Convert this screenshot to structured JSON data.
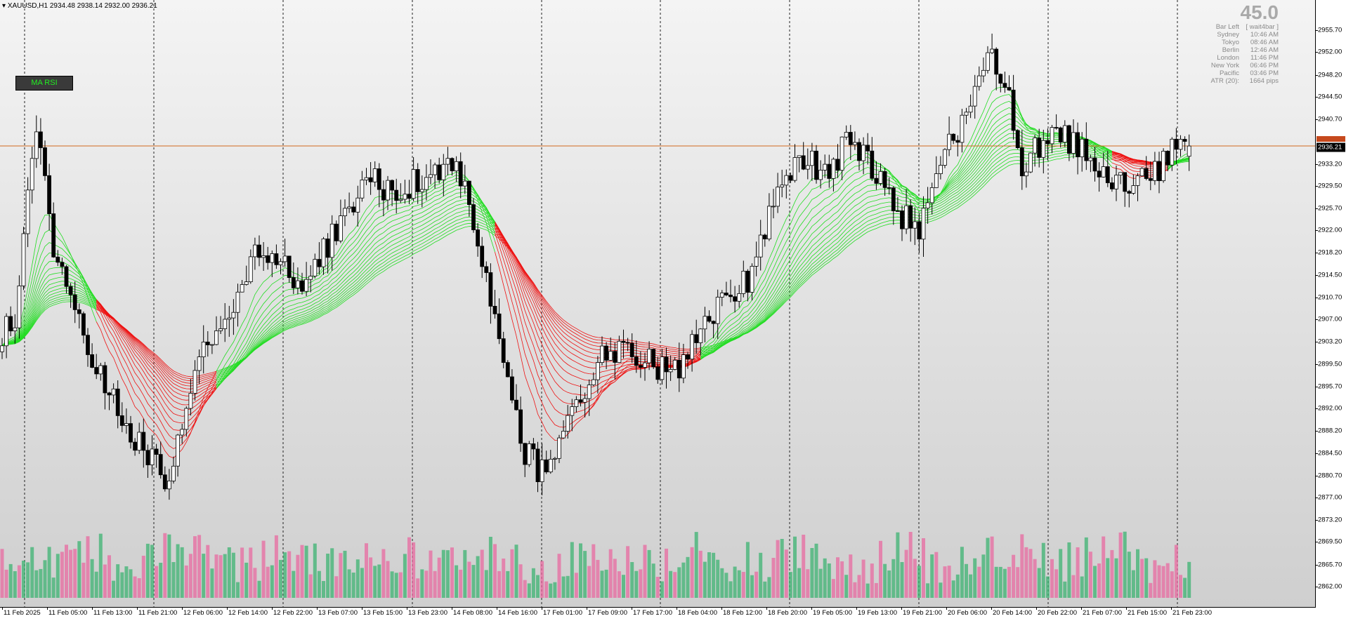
{
  "chart": {
    "title": "XAUUSD,H1  2934.48 2938.14 2932.00 2936.21",
    "ma_rsi_label": "MA RSI",
    "countdown": "45.0",
    "current_price": "2936.21",
    "current_price_value": 2936.21,
    "price_range": [
      2860.1,
      2960.8
    ],
    "session_info": [
      {
        "label": "Bar Left",
        "value": "[ wait4bar ]"
      },
      {
        "label": "Sydney",
        "value": "10:46 AM"
      },
      {
        "label": "Tokyo",
        "value": "08:46 AM"
      },
      {
        "label": "Berlin",
        "value": "12:46 AM"
      },
      {
        "label": "London",
        "value": "11:46 PM"
      },
      {
        "label": "New York",
        "value": "06:46 PM"
      },
      {
        "label": "Pacific",
        "value": "03:46 PM"
      },
      {
        "label": "ATR (20):",
        "value": "1664 pips"
      }
    ],
    "price_labels": [
      "2955.70",
      "2952.00",
      "2948.20",
      "2944.50",
      "2940.70",
      "2933.20",
      "2929.50",
      "2925.70",
      "2922.00",
      "2918.20",
      "2914.50",
      "2910.70",
      "2907.00",
      "2903.20",
      "2899.50",
      "2895.70",
      "2892.00",
      "2888.20",
      "2884.50",
      "2880.70",
      "2877.00",
      "2873.20",
      "2869.50",
      "2865.70",
      "2862.00"
    ],
    "time_labels": [
      "11 Feb 2025",
      "11 Feb 05:00",
      "11 Feb 13:00",
      "11 Feb 21:00",
      "12 Feb 06:00",
      "12 Feb 14:00",
      "12 Feb 22:00",
      "13 Feb 07:00",
      "13 Feb 15:00",
      "13 Feb 23:00",
      "14 Feb 08:00",
      "14 Feb 16:00",
      "17 Feb 01:00",
      "17 Feb 09:00",
      "17 Feb 17:00",
      "18 Feb 04:00",
      "18 Feb 12:00",
      "18 Feb 20:00",
      "19 Feb 05:00",
      "19 Feb 13:00",
      "19 Feb 21:00",
      "20 Feb 06:00",
      "20 Feb 14:00",
      "20 Feb 22:00",
      "21 Feb 07:00",
      "21 Feb 15:00",
      "21 Feb 23:00"
    ],
    "day_separators": [
      "11 Feb",
      "12 Feb",
      "13 Feb",
      "14 Feb",
      "17 Feb",
      "18 Feb",
      "19 Feb",
      "20 Feb",
      "21 Feb"
    ],
    "colors": {
      "bull_candle": "#ffffff",
      "bear_candle": "#000000",
      "ribbon_up": "#22dd22",
      "ribbon_down": "#ee1111",
      "volume_green": "#3cb371",
      "volume_pink": "#e86aa0",
      "price_line": "#d2691e"
    }
  },
  "chart_data": {
    "type": "candlestick",
    "symbol": "XAUUSD",
    "timeframe": "H1",
    "ylim": [
      2860.1,
      2960.8
    ],
    "ohlc_last": {
      "open": 2934.48,
      "high": 2938.14,
      "low": 2932.0,
      "close": 2936.21
    },
    "close_anchors": [
      [
        0,
        2905
      ],
      [
        3,
        2907
      ],
      [
        8,
        2940
      ],
      [
        12,
        2920
      ],
      [
        16,
        2912
      ],
      [
        22,
        2898
      ],
      [
        26,
        2893
      ],
      [
        32,
        2886
      ],
      [
        39,
        2880
      ],
      [
        45,
        2900
      ],
      [
        52,
        2905
      ],
      [
        58,
        2917
      ],
      [
        64,
        2918
      ],
      [
        70,
        2912
      ],
      [
        78,
        2922
      ],
      [
        86,
        2931
      ],
      [
        92,
        2928
      ],
      [
        98,
        2931
      ],
      [
        104,
        2934
      ],
      [
        108,
        2930
      ],
      [
        112,
        2916
      ],
      [
        117,
        2900
      ],
      [
        122,
        2885
      ],
      [
        127,
        2880
      ],
      [
        133,
        2890
      ],
      [
        138,
        2899
      ],
      [
        145,
        2903
      ],
      [
        152,
        2899
      ],
      [
        158,
        2899
      ],
      [
        162,
        2903
      ],
      [
        168,
        2910
      ],
      [
        174,
        2914
      ],
      [
        180,
        2927
      ],
      [
        186,
        2934
      ],
      [
        192,
        2932
      ],
      [
        198,
        2937
      ],
      [
        203,
        2933
      ],
      [
        209,
        2925
      ],
      [
        214,
        2922
      ],
      [
        220,
        2935
      ],
      [
        226,
        2942
      ],
      [
        230,
        2951
      ],
      [
        234,
        2948
      ],
      [
        238,
        2933
      ],
      [
        244,
        2938
      ],
      [
        250,
        2937
      ],
      [
        256,
        2931
      ],
      [
        262,
        2929
      ],
      [
        268,
        2931
      ],
      [
        274,
        2936
      ],
      [
        277,
        2936.21
      ]
    ]
  }
}
